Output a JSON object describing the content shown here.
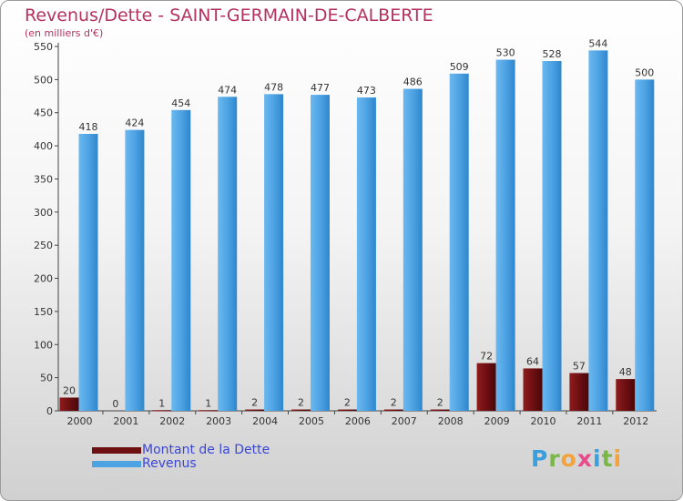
{
  "chart_data": {
    "type": "bar",
    "title": "Revenus/Dette - SAINT-GERMAIN-DE-CALBERTE",
    "subtitle": "(en milliers d'€)",
    "categories": [
      "2000",
      "2001",
      "2002",
      "2003",
      "2004",
      "2005",
      "2006",
      "2007",
      "2008",
      "2009",
      "2010",
      "2011",
      "2012"
    ],
    "series": [
      {
        "name": "Montant de la Dette",
        "color": "#6e0f12",
        "values": [
          20,
          0,
          1,
          1,
          2,
          2,
          2,
          2,
          2,
          72,
          64,
          57,
          48
        ]
      },
      {
        "name": "Revenus",
        "color": "#4ea3e3",
        "values": [
          418,
          424,
          454,
          474,
          478,
          477,
          473,
          486,
          509,
          530,
          528,
          544,
          500
        ]
      }
    ],
    "ylim": [
      0,
      550
    ],
    "yticks": [
      0,
      50,
      100,
      150,
      200,
      250,
      300,
      350,
      400,
      450,
      500,
      550
    ],
    "grid": false,
    "legend_position": "bottom-left"
  },
  "logo_text": "Proxiti"
}
